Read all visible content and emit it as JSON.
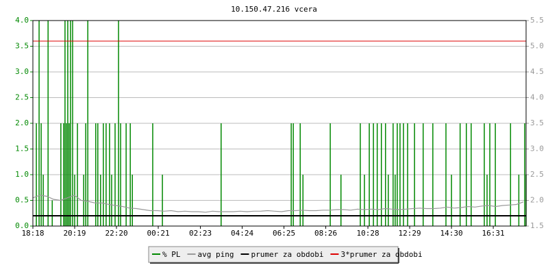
{
  "chart_data": {
    "type": "line",
    "title": "10.150.47.216 vcera",
    "xlim": [
      1098,
      2526
    ],
    "xticks": [
      {
        "value": 1098,
        "label": "18:18"
      },
      {
        "value": 1219,
        "label": "20:19"
      },
      {
        "value": 1340,
        "label": "22:20"
      },
      {
        "value": 1461,
        "label": "00:21"
      },
      {
        "value": 1583,
        "label": "02:23"
      },
      {
        "value": 1704,
        "label": "04:24"
      },
      {
        "value": 1825,
        "label": "06:25"
      },
      {
        "value": 1946,
        "label": "08:26"
      },
      {
        "value": 2068,
        "label": "10:28"
      },
      {
        "value": 2189,
        "label": "12:29"
      },
      {
        "value": 2310,
        "label": "14:30"
      },
      {
        "value": 2431,
        "label": "16:31"
      }
    ],
    "ylim": [
      0,
      4
    ],
    "yticks": [
      {
        "value": 0,
        "label": "0.0"
      },
      0.5,
      {
        "value": 1,
        "label": "1.0"
      },
      1.5,
      {
        "value": 2,
        "label": "2.0"
      },
      2.5,
      {
        "value": 3,
        "label": "3.0"
      },
      3.5,
      {
        "value": 4,
        "label": "4.0"
      }
    ],
    "y2lim": [
      1.5,
      5.5
    ],
    "y2ticks": [
      1.5,
      {
        "value": 2,
        "label": "2.0"
      },
      2.5,
      {
        "value": 3,
        "label": "3.0"
      },
      3.5,
      {
        "value": 4,
        "label": "4.0"
      },
      4.5,
      {
        "value": 5,
        "label": "5.0"
      },
      5.5
    ],
    "grid": true,
    "legend": "bottom",
    "series": [
      {
        "name": "% PL",
        "color": "#008800",
        "style": "spikes",
        "x": [
          1108,
          1116,
          1122,
          1128,
          1142,
          1154,
          1179,
          1187,
          1191,
          1195,
          1199,
          1203,
          1207,
          1213,
          1219,
          1227,
          1245,
          1251,
          1257,
          1280,
          1286,
          1294,
          1302,
          1310,
          1320,
          1326,
          1336,
          1346,
          1352,
          1368,
          1380,
          1386,
          1445,
          1473,
          1643,
          1846,
          1852,
          1872,
          1880,
          1959,
          1990,
          2046,
          2058,
          2072,
          2084,
          2095,
          2107,
          2119,
          2127,
          2141,
          2147,
          2153,
          2161,
          2171,
          2183,
          2203,
          2228,
          2256,
          2294,
          2310,
          2335,
          2353,
          2367,
          2405,
          2413,
          2421,
          2437,
          2481,
          2505,
          2522,
          2526
        ],
        "values": [
          2,
          4,
          2,
          1,
          4,
          0.5,
          2,
          2,
          4,
          2,
          4,
          2,
          4,
          4,
          1,
          2,
          1,
          2,
          4,
          2,
          2,
          1,
          2,
          2,
          2,
          1,
          2,
          4,
          2,
          2,
          2,
          1,
          2,
          1,
          2,
          2,
          2,
          2,
          1,
          2,
          1,
          2,
          1,
          2,
          2,
          2,
          2,
          2,
          1,
          2,
          1,
          2,
          2,
          2,
          2,
          2,
          2,
          2,
          2,
          1,
          2,
          2,
          2,
          2,
          1,
          2,
          2,
          2,
          1,
          2,
          1
        ]
      },
      {
        "name": "avg ping",
        "color": "#999999",
        "axis": "y2",
        "style": "line",
        "x": [
          1098,
          1118,
          1138,
          1158,
          1178,
          1198,
          1218,
          1238,
          1258,
          1278,
          1298,
          1318,
          1338,
          1358,
          1378,
          1398,
          1418,
          1438,
          1458,
          1478,
          1498,
          1518,
          1538,
          1558,
          1578,
          1598,
          1618,
          1638,
          1658,
          1678,
          1698,
          1718,
          1738,
          1758,
          1778,
          1798,
          1818,
          1838,
          1858,
          1878,
          1898,
          1918,
          1938,
          1958,
          1978,
          1998,
          2018,
          2038,
          2058,
          2078,
          2098,
          2118,
          2138,
          2158,
          2178,
          2198,
          2218,
          2238,
          2258,
          2278,
          2298,
          2318,
          2338,
          2358,
          2378,
          2398,
          2418,
          2438,
          2458,
          2478,
          2498,
          2518
        ],
        "values": [
          2.05,
          2.1,
          2.08,
          2.02,
          2.0,
          2.05,
          2.1,
          2.0,
          1.98,
          1.95,
          1.95,
          1.92,
          1.9,
          1.88,
          1.85,
          1.84,
          1.82,
          1.8,
          1.8,
          1.79,
          1.8,
          1.78,
          1.79,
          1.78,
          1.78,
          1.77,
          1.79,
          1.78,
          1.78,
          1.78,
          1.79,
          1.78,
          1.79,
          1.79,
          1.8,
          1.79,
          1.78,
          1.8,
          1.8,
          1.81,
          1.8,
          1.8,
          1.81,
          1.81,
          1.82,
          1.82,
          1.81,
          1.83,
          1.82,
          1.83,
          1.82,
          1.84,
          1.83,
          1.82,
          1.83,
          1.84,
          1.85,
          1.84,
          1.84,
          1.85,
          1.87,
          1.85,
          1.86,
          1.88,
          1.87,
          1.89,
          1.9,
          1.88,
          1.9,
          1.91,
          1.92,
          1.97
        ]
      },
      {
        "name": "prumer za obdobi",
        "color": "#000000",
        "axis": "y2",
        "style": "hline",
        "value": 1.7
      },
      {
        "name": "3*prumer za obdobi",
        "color": "#dd0000",
        "axis": "y2",
        "style": "hline",
        "value": 5.1
      }
    ]
  }
}
